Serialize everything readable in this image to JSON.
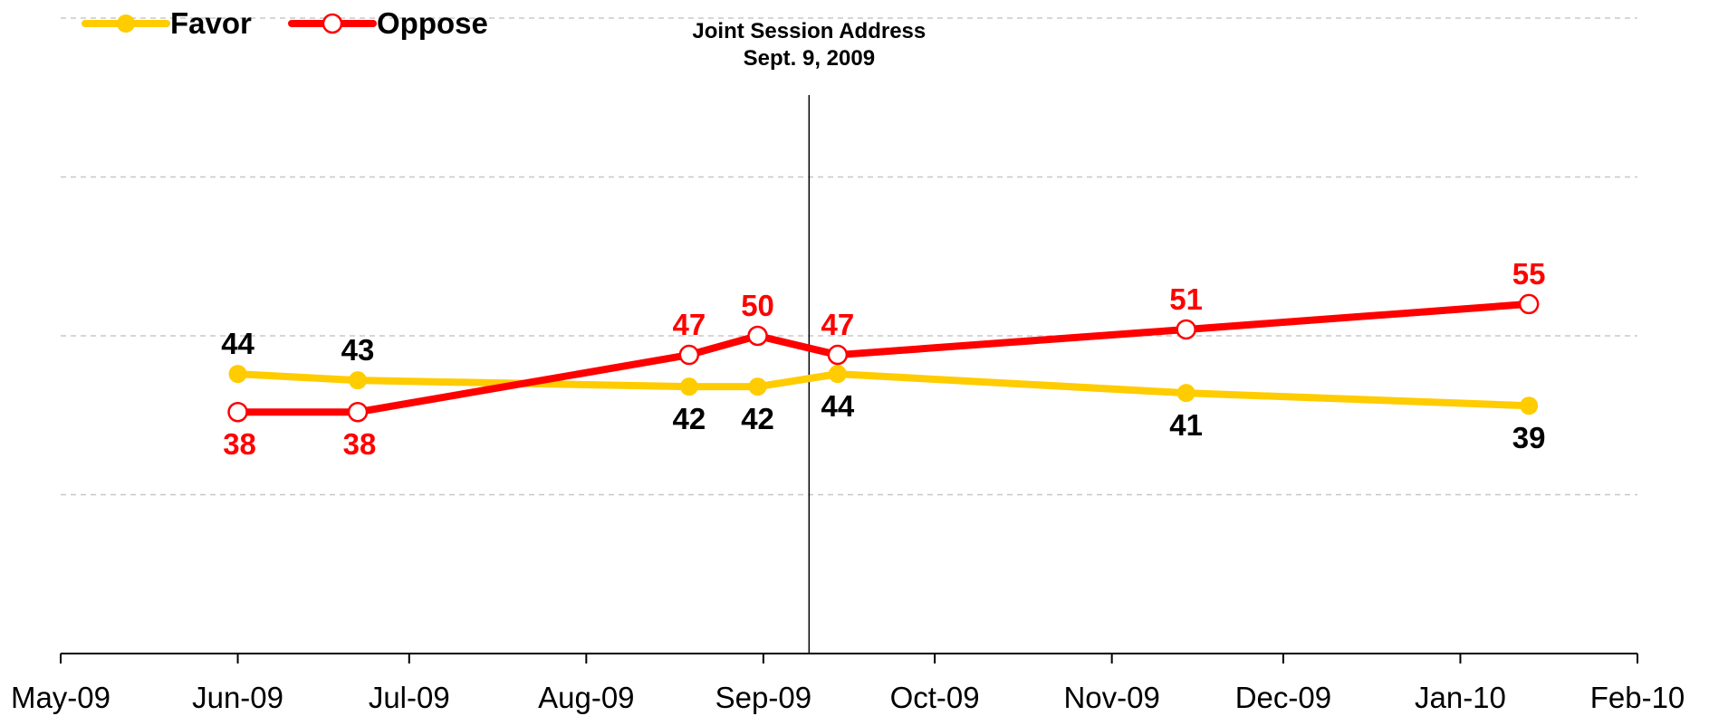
{
  "chart_data": {
    "type": "line",
    "title": "",
    "xlabel": "",
    "ylabel": "",
    "x_axis_type": "date",
    "xlim": [
      "2009-05-01",
      "2010-02-01"
    ],
    "ylim": [
      0,
      100
    ],
    "grid": true,
    "legend_position": "top-left",
    "x_ticks": [
      {
        "date": "2009-05-01",
        "label": "May-09"
      },
      {
        "date": "2009-06-01",
        "label": "Jun-09"
      },
      {
        "date": "2009-07-01",
        "label": "Jul-09"
      },
      {
        "date": "2009-08-01",
        "label": "Aug-09"
      },
      {
        "date": "2009-09-01",
        "label": "Sep-09"
      },
      {
        "date": "2009-10-01",
        "label": "Oct-09"
      },
      {
        "date": "2009-11-01",
        "label": "Nov-09"
      },
      {
        "date": "2009-12-01",
        "label": "Dec-09"
      },
      {
        "date": "2010-01-01",
        "label": "Jan-10"
      },
      {
        "date": "2010-02-01",
        "label": "Feb-10"
      }
    ],
    "series": [
      {
        "name": "Favor",
        "color": "#FFCC00",
        "label_color": "#000000",
        "marker": "filled-circle",
        "points": [
          {
            "x": "2009-06-01",
            "y": 44,
            "label": "44",
            "label_side": "above"
          },
          {
            "x": "2009-06-22",
            "y": 43,
            "label": "43",
            "label_side": "above"
          },
          {
            "x": "2009-08-19",
            "y": 42,
            "label": "42",
            "label_side": "below"
          },
          {
            "x": "2009-08-31",
            "y": 42,
            "label": "42",
            "label_side": "below"
          },
          {
            "x": "2009-09-14",
            "y": 44,
            "label": "44",
            "label_side": "below"
          },
          {
            "x": "2009-11-14",
            "y": 41,
            "label": "41",
            "label_side": "below"
          },
          {
            "x": "2010-01-13",
            "y": 39,
            "label": "39",
            "label_side": "below"
          }
        ]
      },
      {
        "name": "Oppose",
        "color": "#FF0000",
        "label_color": "#FF0000",
        "marker": "open-circle",
        "points": [
          {
            "x": "2009-06-01",
            "y": 38,
            "label": "38",
            "label_side": "below"
          },
          {
            "x": "2009-06-22",
            "y": 38,
            "label": "38",
            "label_side": "below"
          },
          {
            "x": "2009-08-19",
            "y": 47,
            "label": "47",
            "label_side": "above"
          },
          {
            "x": "2009-08-31",
            "y": 50,
            "label": "50",
            "label_side": "above"
          },
          {
            "x": "2009-09-14",
            "y": 47,
            "label": "47",
            "label_side": "above"
          },
          {
            "x": "2009-11-14",
            "y": 51,
            "label": "51",
            "label_side": "above"
          },
          {
            "x": "2010-01-13",
            "y": 55,
            "label": "55",
            "label_side": "above"
          }
        ]
      }
    ],
    "annotations": [
      {
        "type": "vertical-line",
        "x": "2009-09-09",
        "lines": [
          "Joint Session Address",
          "Sept. 9, 2009"
        ]
      }
    ]
  }
}
